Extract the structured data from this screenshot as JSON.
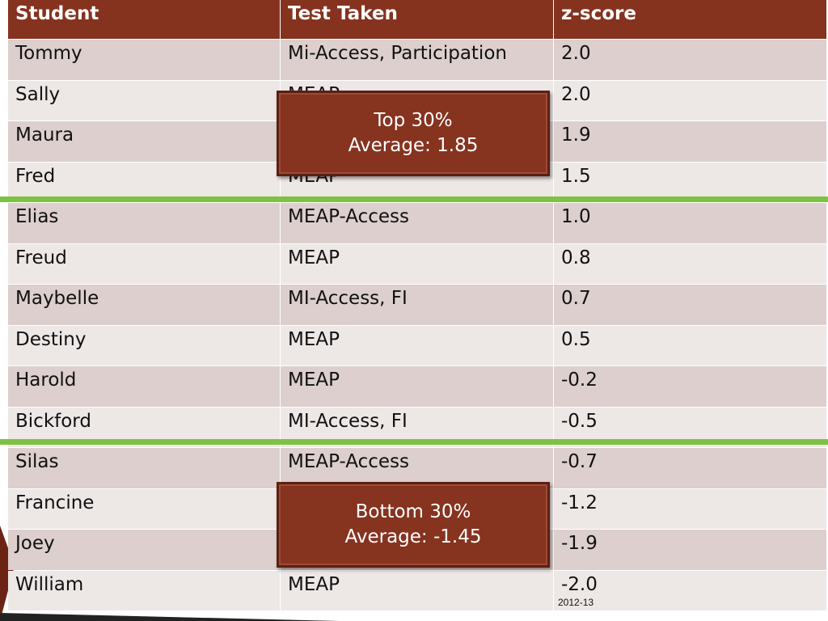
{
  "table": {
    "header": [
      "Student",
      "Test Taken",
      "z-score"
    ],
    "rows": [
      [
        "Tommy",
        "Mi-Access, Participation",
        "2.0"
      ],
      [
        "Sally",
        "MEAP",
        "2.0"
      ],
      [
        "Maura",
        null,
        "1.9"
      ],
      [
        "Fred",
        "MEAP",
        "1.5"
      ],
      [
        "Elias",
        "MEAP-Access",
        "1.0"
      ],
      [
        "Freud",
        "MEAP",
        "0.8"
      ],
      [
        "Maybelle",
        "MI-Access, FI",
        "0.7"
      ],
      [
        "Destiny",
        "MEAP",
        "0.5"
      ],
      [
        "Harold",
        "MEAP",
        "-0.2"
      ],
      [
        "Bickford",
        "MI-Access, FI",
        "-0.5"
      ],
      [
        "Silas",
        "MEAP-Access",
        "-0.7"
      ],
      [
        "Francine",
        null,
        "-1.2"
      ],
      [
        "Joey",
        null,
        "-1.9"
      ],
      [
        "William",
        "MEAP",
        "-2.0"
      ]
    ]
  },
  "callouts": [
    {
      "lines": [
        "Top 30%",
        "Average:  1.85"
      ]
    },
    {
      "lines": [
        "Bottom 30%",
        "Average: -1.45"
      ]
    }
  ],
  "footer": "2012-13"
}
